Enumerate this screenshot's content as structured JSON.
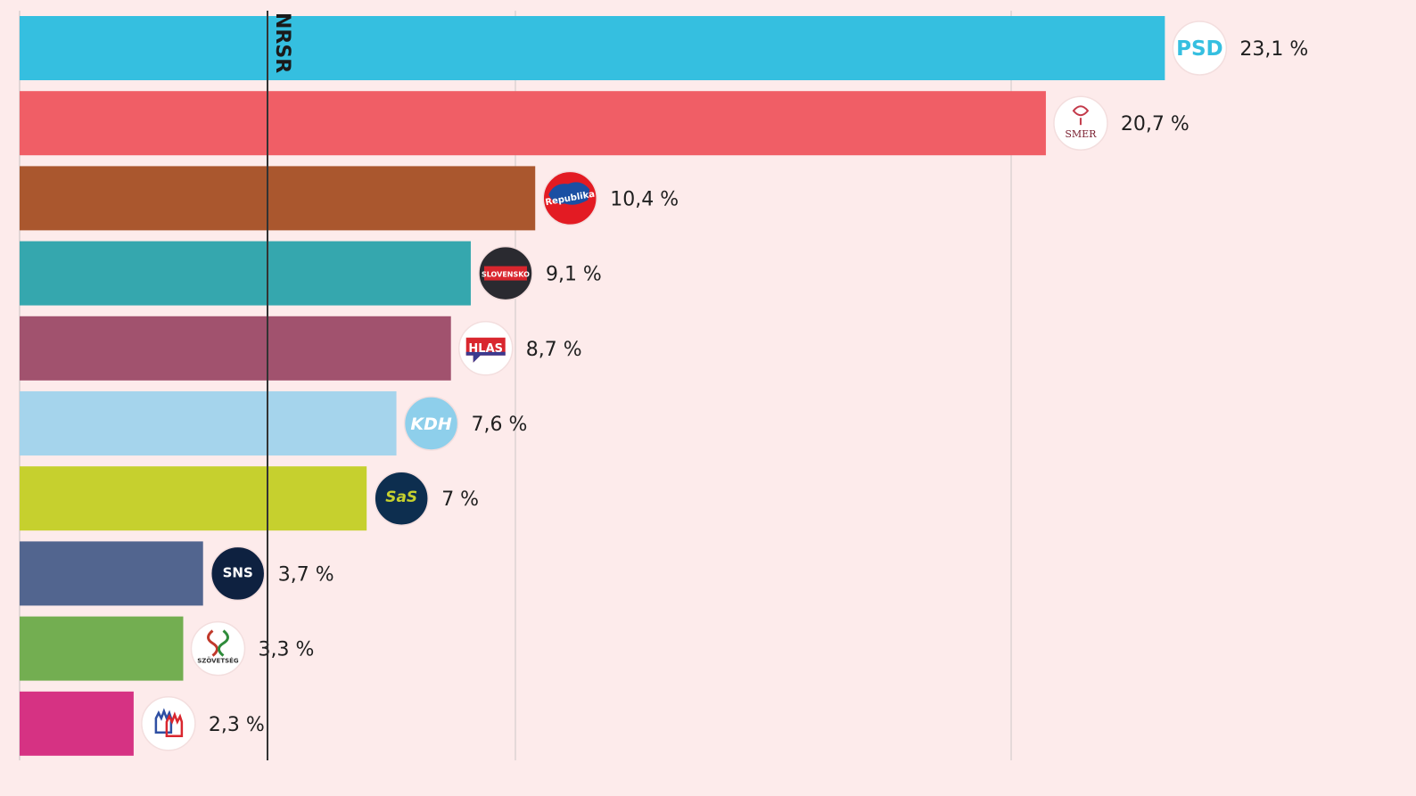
{
  "chart_data": {
    "type": "bar",
    "orientation": "horizontal",
    "categories": [
      "PSD",
      "SMER",
      "Republika",
      "Hnutie Slovensko",
      "HLAS",
      "KDH",
      "SaS",
      "SNS",
      "Szövetség",
      "Demokrati"
    ],
    "values": [
      23.1,
      20.7,
      10.4,
      9.1,
      8.7,
      7.6,
      7.0,
      3.7,
      3.3,
      2.3
    ],
    "value_labels": [
      "23,1 %",
      "20,7 %",
      "10,4 %",
      "9,1 %",
      "8,7 %",
      "7,6 %",
      "7 %",
      "3,7 %",
      "3,3 %",
      "2,3 %"
    ],
    "colors": [
      "#35bfe0",
      "#f05e66",
      "#aa572e",
      "#35a7ae",
      "#a1526e",
      "#a5d4ec",
      "#c6d02e",
      "#52658f",
      "#73ae51",
      "#d63283"
    ],
    "xlim": [
      0,
      30
    ],
    "grid": true,
    "threshold": {
      "value": 5,
      "label": "NRSR"
    },
    "logos": [
      {
        "icon": "psd-logo",
        "text": "PSD",
        "bg": "#ffffff",
        "fg": "#35bfe0"
      },
      {
        "icon": "smer-logo",
        "text": "SMER",
        "bg": "#ffffff",
        "fg": "#7a2030"
      },
      {
        "icon": "republika-logo",
        "text": "Republika",
        "bg": "#e31b23",
        "fg": "#ffffff"
      },
      {
        "icon": "hnutie-slovensko-logo",
        "text": "SLOVENSKO",
        "bg": "#2a2a30",
        "fg": "#ffffff"
      },
      {
        "icon": "hlas-logo",
        "text": "HLAS",
        "bg": "#ffffff",
        "fg": "#ffffff"
      },
      {
        "icon": "kdh-logo",
        "text": "KDH",
        "bg": "#8ecfeb",
        "fg": "#ffffff"
      },
      {
        "icon": "sas-logo",
        "text": "SaS",
        "bg": "#0d2e4f",
        "fg": "#c6d02e"
      },
      {
        "icon": "sns-logo",
        "text": "SNS",
        "bg": "#0e2140",
        "fg": "#ffffff"
      },
      {
        "icon": "szovetseg-logo",
        "text": "SZÖVETSÉG",
        "bg": "#ffffff",
        "fg": "#333333"
      },
      {
        "icon": "demokrati-logo",
        "text": "",
        "bg": "#ffffff",
        "fg": "#c02a3a"
      }
    ]
  }
}
